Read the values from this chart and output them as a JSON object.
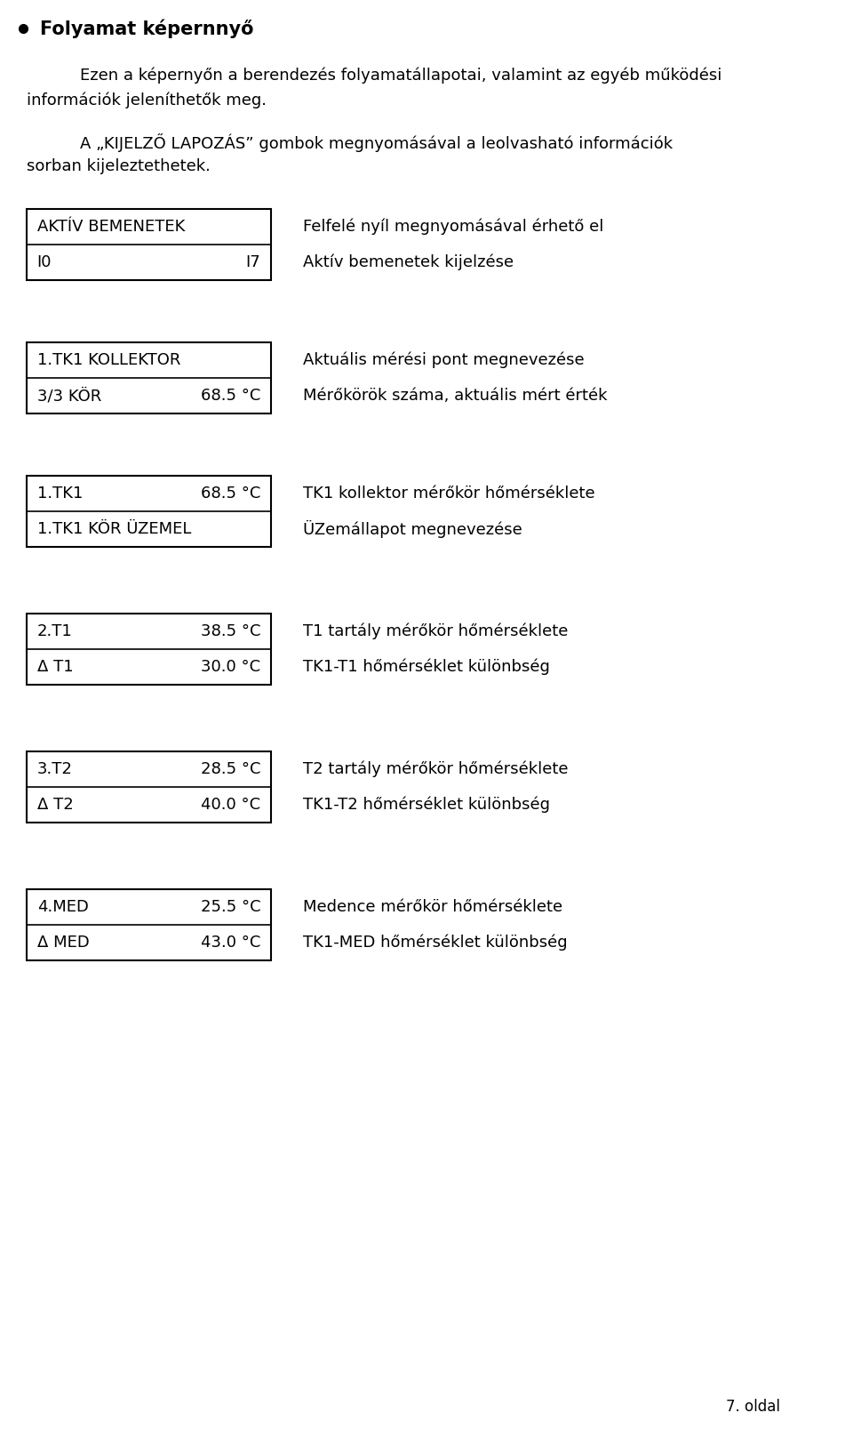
{
  "bg_color": "#ffffff",
  "text_color": "#000000",
  "bullet_title": "Folyamat képernnyő",
  "para1_line1": "Ezen a képernyőn a berendezés folyamatállapotai, valamint az egyéb működési",
  "para1_line2": "információk jeleníthetők meg.",
  "para2_line1": "A „KIJELZŐ LAPOZÁS” gombok megnyomásával a leolvasható információk",
  "para2_line2": "sorban kijeleztethetek.",
  "boxes": [
    {
      "row1_left": "AKTÍV BEMENETEK",
      "row1_right": "",
      "row2_left": "I0",
      "row2_right": "I7",
      "desc1": "Felfelé nyíl megnyomásával érhető el",
      "desc2": "Aktív bemenetek kijelzése"
    },
    {
      "row1_left": "1.TK1 KOLLEKTOR",
      "row1_right": "",
      "row2_left": "3/3 KÖR",
      "row2_right": "68.5 °C",
      "desc1": "Aktuális mérési pont megnevezése",
      "desc2": "Mérőkörök száma, aktuális mért érték"
    },
    {
      "row1_left": "1.TK1",
      "row1_right": "68.5 °C",
      "row2_left": "1.TK1 KÖR ÜZEMEL",
      "row2_right": "",
      "desc1": "TK1 kollektor mérőkör hőmérséklete",
      "desc2": "ÜZemállapot megnevezése"
    },
    {
      "row1_left": "2.T1",
      "row1_right": "38.5 °C",
      "row2_left": "Δ T1",
      "row2_right": "30.0 °C",
      "desc1": "T1 tartály mérőkör hőmérséklete",
      "desc2": "TK1-T1 hőmérséklet különbség"
    },
    {
      "row1_left": "3.T2",
      "row1_right": "28.5 °C",
      "row2_left": "Δ T2",
      "row2_right": "40.0 °C",
      "desc1": "T2 tartály mérőkör hőmérséklete",
      "desc2": "TK1-T2 hőmérséklet különbség"
    },
    {
      "row1_left": "4.MED",
      "row1_right": "25.5 °C",
      "row2_left": "Δ MED",
      "row2_right": "43.0 °C",
      "desc1": "Medence mérőkör hőmérséklete",
      "desc2": "TK1-MED hőmérséklet különbség"
    }
  ],
  "page_number": "7. oldal",
  "font_size_title": 15,
  "font_size_body": 13,
  "font_size_box": 13,
  "font_size_page": 12
}
